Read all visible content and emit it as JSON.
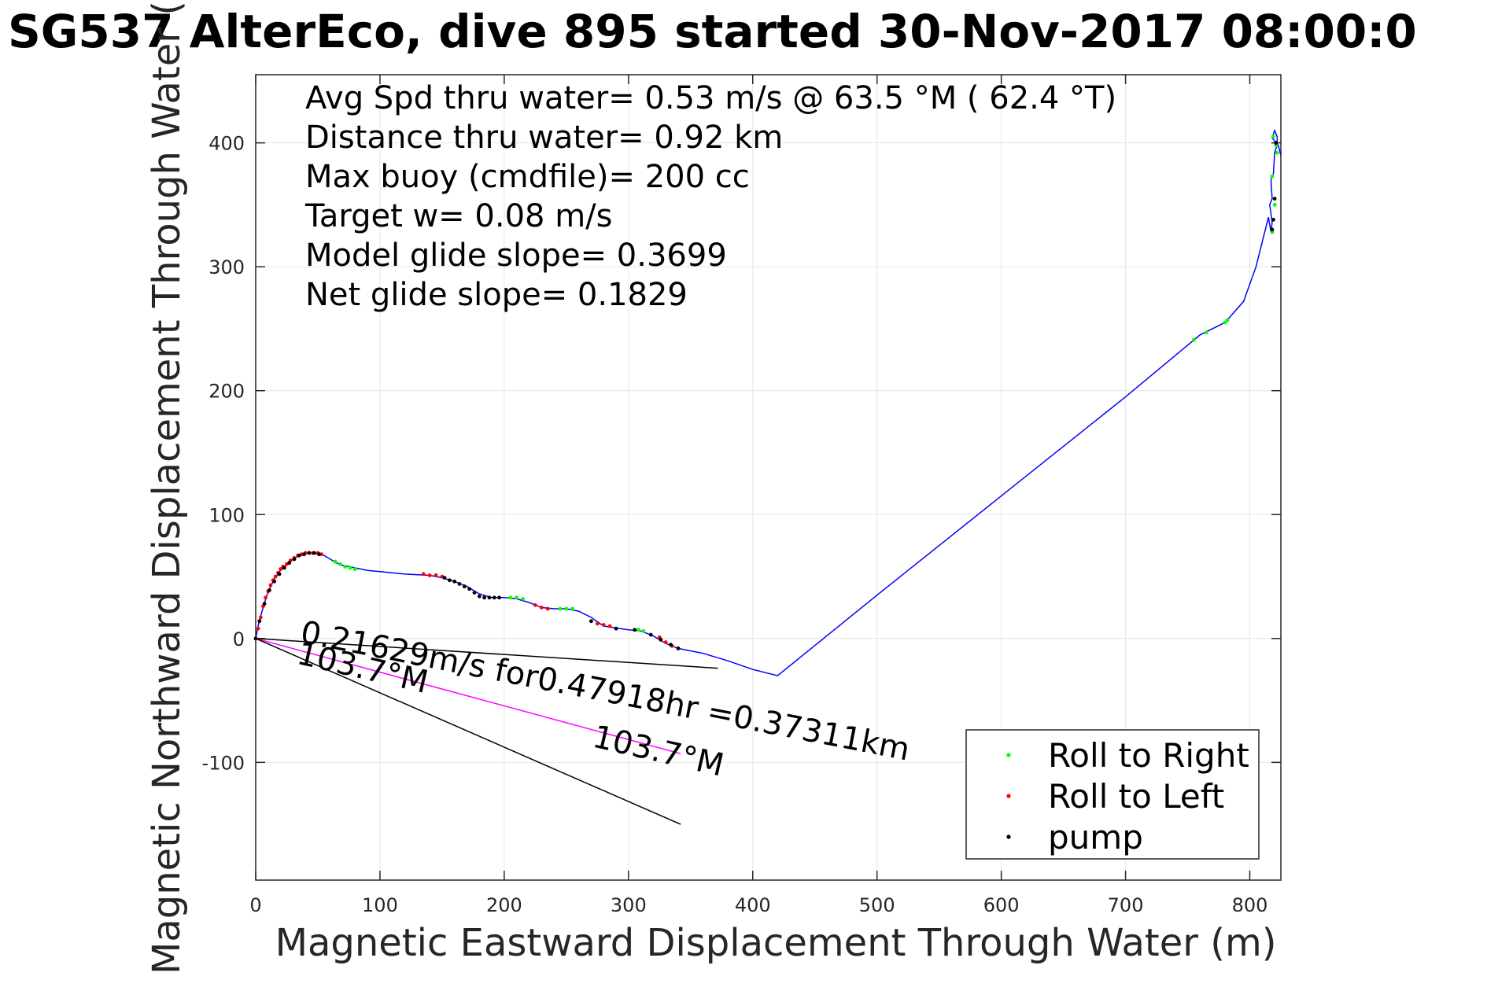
{
  "chart_data": {
    "type": "scatter",
    "title": "SG537 AlterEco, dive 895 started 30-Nov-2017 08:00:0",
    "xlabel": "Magnetic Eastward Displacement Through Water (m)",
    "ylabel": "Magnetic Northward Displacement Through Water (",
    "xlim": [
      0,
      825
    ],
    "ylim": [
      -195,
      455
    ],
    "xticks": [
      0,
      100,
      200,
      300,
      400,
      500,
      600,
      700,
      800
    ],
    "yticks": [
      -100,
      0,
      100,
      200,
      300,
      400
    ],
    "grid": true,
    "info_lines": [
      "Avg Spd thru water=  0.53 m/s @  63.5 °M ( 62.4 °T)",
      "Distance thru water=  0.92 km",
      "Max buoy (cmdfile)= 200 cc",
      "Target w= 0.08 m/s",
      "Model glide slope= 0.3699",
      "Net glide slope= 0.1829"
    ],
    "track": {
      "color": "#0000ff",
      "x": [
        0,
        3,
        6,
        9,
        12,
        15,
        20,
        25,
        30,
        35,
        40,
        45,
        50,
        55,
        60,
        65,
        70,
        80,
        90,
        100,
        120,
        140,
        150,
        160,
        170,
        180,
        190,
        200,
        210,
        220,
        230,
        240,
        250,
        260,
        270,
        280,
        300,
        310,
        320,
        330,
        340,
        360,
        380,
        400,
        420,
        500,
        600,
        700,
        760,
        780,
        795,
        805,
        810,
        815,
        817,
        818,
        816,
        818,
        817,
        819,
        820,
        822,
        822,
        820,
        818,
        823,
        825
      ],
      "y": [
        0,
        15,
        25,
        35,
        42,
        48,
        55,
        60,
        64,
        67,
        69,
        69,
        68,
        67,
        64,
        61,
        59,
        57,
        55,
        54,
        52,
        51,
        49,
        46,
        42,
        36,
        33,
        33,
        32,
        29,
        25,
        24,
        24,
        22,
        17,
        10,
        7,
        6,
        2,
        -4,
        -8,
        -12,
        -18,
        -25,
        -30,
        35,
        115,
        195,
        245,
        255,
        272,
        300,
        320,
        340,
        328,
        336,
        350,
        355,
        370,
        375,
        392,
        398,
        405,
        410,
        404,
        398,
        390
      ]
    },
    "series": [
      {
        "name": "Roll to Right",
        "color": "#00ff00",
        "x": [
          64,
          68,
          72,
          76,
          80,
          205,
          210,
          215,
          245,
          250,
          255,
          308,
          312,
          755,
          765,
          780,
          782,
          818,
          820,
          818,
          822,
          821,
          819
        ],
        "y": [
          62,
          60,
          58,
          57,
          56,
          33,
          33,
          32,
          24,
          24,
          24,
          7,
          6,
          241,
          247,
          255,
          257,
          328,
          350,
          373,
          392,
          398,
          405
        ]
      },
      {
        "name": "Roll to Left",
        "color": "#ff0000",
        "x": [
          0,
          2,
          4,
          6,
          8,
          10,
          12,
          14,
          16,
          18,
          20,
          22,
          25,
          28,
          31,
          34,
          37,
          40,
          43,
          46,
          50,
          53,
          135,
          140,
          145,
          150,
          225,
          230,
          235,
          275,
          280,
          285,
          325,
          330,
          335,
          340
        ],
        "y": [
          0,
          8,
          17,
          26,
          33,
          38,
          43,
          47,
          50,
          53,
          56,
          58,
          60,
          63,
          65,
          67,
          68,
          69,
          69,
          69,
          69,
          68,
          52,
          51,
          51,
          50,
          27,
          25,
          24,
          12,
          11,
          10,
          1,
          -3,
          -6,
          -8
        ]
      },
      {
        "name": "pump",
        "color": "#000000",
        "x": [
          0,
          3,
          7,
          11,
          15,
          19,
          23,
          27,
          31,
          35,
          39,
          43,
          47,
          51,
          152,
          156,
          160,
          164,
          168,
          172,
          176,
          180,
          184,
          188,
          192,
          196,
          270,
          290,
          305,
          318,
          326,
          334,
          340,
          818,
          819,
          820,
          821
        ],
        "y": [
          0,
          14,
          28,
          39,
          46,
          52,
          57,
          61,
          64,
          67,
          68,
          69,
          69,
          68,
          49,
          47,
          46,
          44,
          42,
          40,
          37,
          34,
          33,
          33,
          33,
          33,
          14,
          8,
          7,
          3,
          -1,
          -5,
          -8,
          330,
          338,
          355,
          400
        ]
      }
    ],
    "reference_lines": [
      {
        "x": [
          0,
          372
        ],
        "y": [
          0,
          -24
        ],
        "color": "#000000"
      },
      {
        "x": [
          0,
          342
        ],
        "y": [
          0,
          -93
        ],
        "color": "#ff00ff"
      },
      {
        "x": [
          0,
          342
        ],
        "y": [
          0,
          -150
        ],
        "color": "#000000"
      }
    ],
    "annotations": [
      {
        "text": "0.21629m/s for0.47918hr =0.37311km",
        "x": 35,
        "y": -3,
        "angle_deg": 11
      },
      {
        "text": "103.7°M",
        "x": 32,
        "y": -20,
        "angle_deg": 13
      },
      {
        "text": "103.7°M",
        "x": 270,
        "y": -87,
        "angle_deg": 13
      }
    ],
    "legend": {
      "placement": "bottom-right",
      "entries": [
        "Roll to Right",
        "Roll to Left",
        "pump"
      ],
      "colors": [
        "#00ff00",
        "#ff0000",
        "#000000"
      ]
    }
  }
}
